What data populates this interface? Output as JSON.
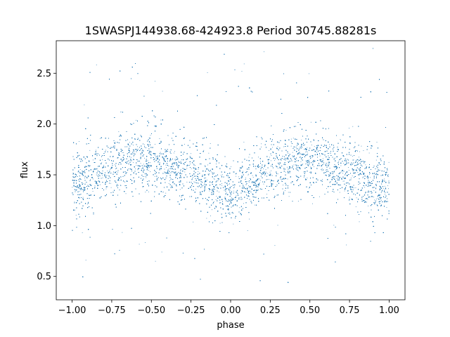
{
  "chart_data": {
    "type": "scatter",
    "title": "1SWASPJ144938.68-424923.8 Period 30745.88281s",
    "xlabel": "phase",
    "ylabel": "flux",
    "xlim": [
      -1.1,
      1.1
    ],
    "ylim": [
      0.27,
      2.82
    ],
    "xticks": [
      -1.0,
      -0.75,
      -0.5,
      -0.25,
      0.0,
      0.25,
      0.5,
      0.75,
      1.0
    ],
    "xtick_labels": [
      "−1.00",
      "−0.75",
      "−0.50",
      "−0.25",
      "0.00",
      "0.25",
      "0.50",
      "0.75",
      "1.00"
    ],
    "yticks": [
      0.5,
      1.0,
      1.5,
      2.0,
      2.5
    ],
    "ytick_labels": [
      "0.5",
      "1.0",
      "1.5",
      "2.0",
      "2.5"
    ],
    "grid": false,
    "marker_color": "#1f77b4",
    "series": [
      {
        "phase_range": [
          -1.0,
          1.0
        ],
        "trend_points": {
          "x": [
            -1.0,
            -0.75,
            -0.6,
            -0.5,
            -0.25,
            0.0,
            0.25,
            0.4,
            0.5,
            0.75,
            1.0
          ],
          "y": [
            1.38,
            1.58,
            1.66,
            1.65,
            1.52,
            1.32,
            1.55,
            1.66,
            1.66,
            1.52,
            1.35
          ]
        },
        "spread_sd": 0.14,
        "outlier_range": [
          0.4,
          2.75
        ],
        "approx_points": 26000
      }
    ]
  }
}
